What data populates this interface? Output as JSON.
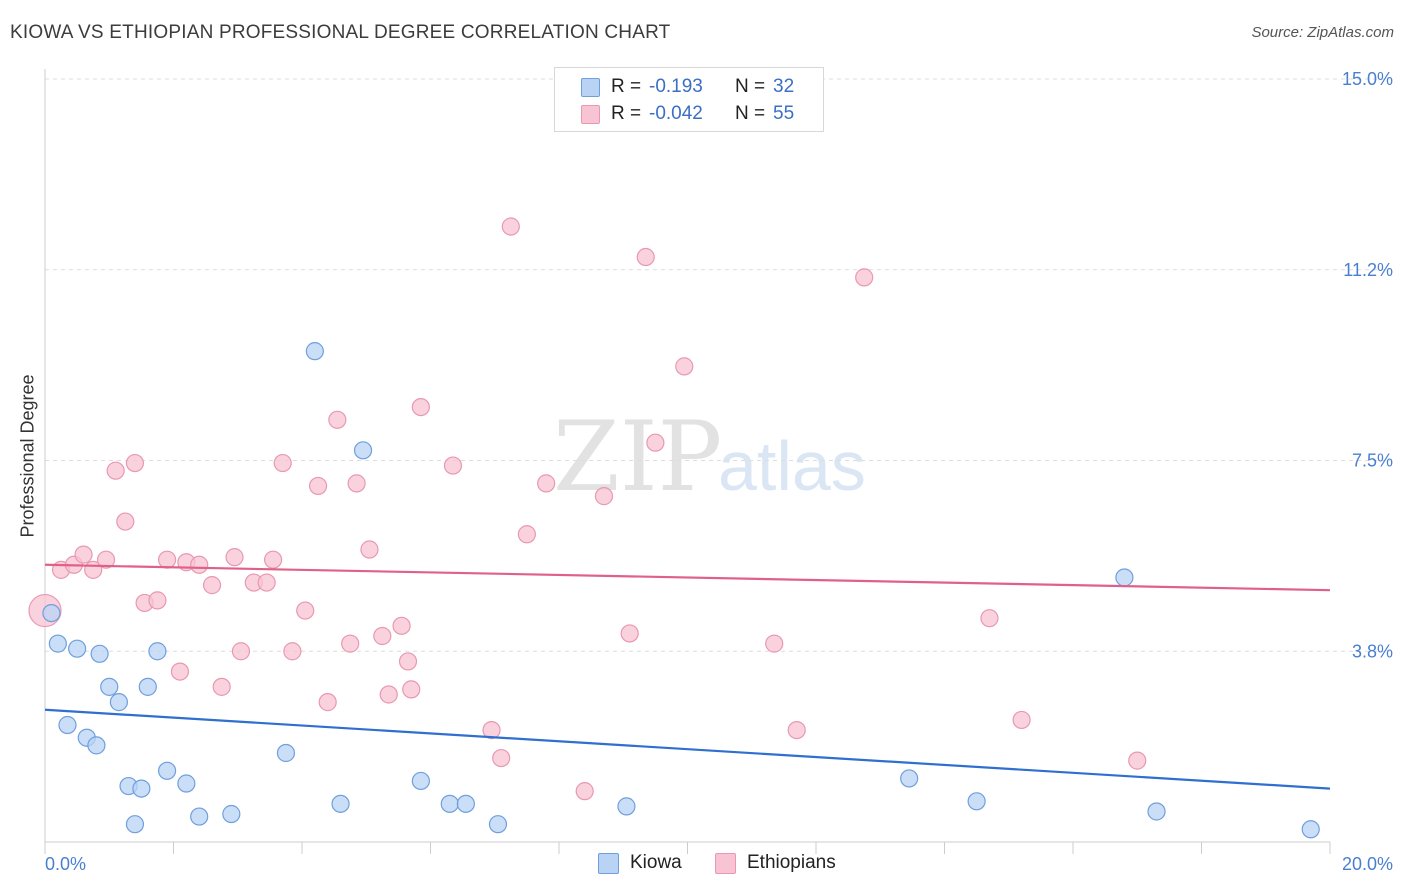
{
  "title": "KIOWA VS ETHIOPIAN PROFESSIONAL DEGREE CORRELATION CHART",
  "source": "Source: ZipAtlas.com",
  "watermark": {
    "zip": "ZIP",
    "atlas": "atlas"
  },
  "legend": {
    "r_label": "R =",
    "n_label": "N =",
    "rows": [
      {
        "name": "Kiowa",
        "r": "-0.193",
        "n": "32"
      },
      {
        "name": "Ethiopians",
        "r": "-0.042",
        "n": "55"
      }
    ]
  },
  "colors": {
    "kiowa_fill": "#b9d3f5",
    "kiowa_stroke": "#6f9fdc",
    "kiowa_line": "#2f6fcf",
    "ethiopians_fill": "#f8c3d3",
    "ethiopians_stroke": "#e898b2",
    "ethiopians_line": "#e0608a",
    "tick_label": "#4a7fd0",
    "grid": "#dddddd"
  },
  "chart_data": {
    "type": "scatter",
    "title": "KIOWA VS ETHIOPIAN PROFESSIONAL DEGREE CORRELATION CHART",
    "ylabel": "Professional Degree",
    "xlabel": "",
    "xlim": [
      0,
      20
    ],
    "ylim": [
      0,
      15
    ],
    "x_tick_labels": [
      {
        "value": 0,
        "label": "0.0%"
      },
      {
        "value": 20,
        "label": "20.0%"
      }
    ],
    "y_tick_labels": [
      {
        "value": 3.75,
        "label": "3.8%"
      },
      {
        "value": 7.5,
        "label": "7.5%"
      },
      {
        "value": 11.25,
        "label": "11.2%"
      },
      {
        "value": 15,
        "label": "15.0%"
      }
    ],
    "grid": true,
    "legend_position": "top-center",
    "series": [
      {
        "name": "Kiowa",
        "trend": {
          "x": [
            0,
            20
          ],
          "y": [
            2.6,
            1.05
          ]
        },
        "points": [
          [
            0.1,
            4.5
          ],
          [
            0.2,
            3.9
          ],
          [
            0.5,
            3.8
          ],
          [
            0.85,
            3.7
          ],
          [
            1.75,
            3.75
          ],
          [
            1.0,
            3.05
          ],
          [
            1.15,
            2.75
          ],
          [
            1.6,
            3.05
          ],
          [
            0.35,
            2.3
          ],
          [
            0.65,
            2.05
          ],
          [
            0.8,
            1.9
          ],
          [
            4.2,
            9.65
          ],
          [
            4.95,
            7.7
          ],
          [
            3.75,
            1.75
          ],
          [
            1.9,
            1.4
          ],
          [
            2.2,
            1.15
          ],
          [
            1.3,
            1.1
          ],
          [
            1.5,
            1.05
          ],
          [
            2.4,
            0.5
          ],
          [
            2.9,
            0.55
          ],
          [
            1.4,
            0.35
          ],
          [
            4.6,
            0.75
          ],
          [
            5.85,
            1.2
          ],
          [
            6.3,
            0.75
          ],
          [
            6.55,
            0.75
          ],
          [
            7.05,
            0.35
          ],
          [
            9.05,
            0.7
          ],
          [
            13.45,
            1.25
          ],
          [
            14.5,
            0.8
          ],
          [
            16.8,
            5.2
          ],
          [
            17.3,
            0.6
          ],
          [
            19.7,
            0.25
          ]
        ]
      },
      {
        "name": "Ethiopians",
        "trend": {
          "x": [
            0,
            20
          ],
          "y": [
            5.45,
            4.95
          ]
        },
        "points": [
          [
            0.0,
            4.55
          ],
          [
            0.25,
            5.35
          ],
          [
            0.45,
            5.45
          ],
          [
            0.6,
            5.65
          ],
          [
            0.75,
            5.35
          ],
          [
            0.95,
            5.55
          ],
          [
            1.1,
            7.3
          ],
          [
            1.4,
            7.45
          ],
          [
            1.25,
            6.3
          ],
          [
            1.55,
            4.7
          ],
          [
            1.75,
            4.75
          ],
          [
            1.9,
            5.55
          ],
          [
            2.1,
            3.35
          ],
          [
            2.2,
            5.5
          ],
          [
            2.4,
            5.45
          ],
          [
            2.6,
            5.05
          ],
          [
            2.75,
            3.05
          ],
          [
            2.95,
            5.6
          ],
          [
            3.05,
            3.75
          ],
          [
            3.25,
            5.1
          ],
          [
            3.45,
            5.1
          ],
          [
            3.55,
            5.55
          ],
          [
            3.7,
            7.45
          ],
          [
            3.85,
            3.75
          ],
          [
            4.05,
            4.55
          ],
          [
            4.25,
            7.0
          ],
          [
            4.4,
            2.75
          ],
          [
            4.55,
            8.3
          ],
          [
            4.75,
            3.9
          ],
          [
            4.85,
            7.05
          ],
          [
            5.05,
            5.75
          ],
          [
            5.25,
            4.05
          ],
          [
            5.35,
            2.9
          ],
          [
            5.55,
            4.25
          ],
          [
            5.65,
            3.55
          ],
          [
            5.7,
            3.0
          ],
          [
            5.85,
            8.55
          ],
          [
            6.35,
            7.4
          ],
          [
            6.95,
            2.2
          ],
          [
            7.1,
            1.65
          ],
          [
            7.25,
            12.1
          ],
          [
            7.5,
            6.05
          ],
          [
            7.8,
            7.05
          ],
          [
            8.4,
            1.0
          ],
          [
            8.7,
            6.8
          ],
          [
            9.1,
            4.1
          ],
          [
            9.5,
            7.85
          ],
          [
            9.35,
            11.5
          ],
          [
            9.95,
            9.35
          ],
          [
            11.35,
            3.9
          ],
          [
            11.7,
            2.2
          ],
          [
            12.75,
            11.1
          ],
          [
            14.7,
            4.4
          ],
          [
            15.2,
            2.4
          ],
          [
            17.0,
            1.6
          ]
        ]
      }
    ]
  }
}
